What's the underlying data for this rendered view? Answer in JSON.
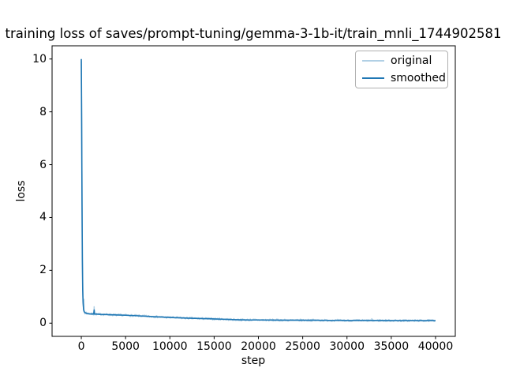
{
  "chart_data": {
    "type": "line",
    "title": "training loss of saves/prompt-tuning/gemma-3-1b-it/train_mnli_1744902581",
    "xlabel": "step",
    "ylabel": "loss",
    "xlim": [
      -3300,
      42230
    ],
    "ylim": [
      -0.5,
      10.5
    ],
    "xticks": [
      0,
      5000,
      10000,
      15000,
      20000,
      25000,
      30000,
      35000,
      40000
    ],
    "yticks": [
      0,
      2,
      4,
      6,
      8,
      10
    ],
    "grid": false,
    "frame_color": "#000000",
    "legend": {
      "position": "upper right",
      "entries": [
        {
          "label": "original",
          "color": "rgba(31,119,180,0.35)"
        },
        {
          "label": "smoothed",
          "color": "#1f77b4"
        }
      ]
    },
    "series": [
      {
        "name": "original",
        "color": "rgba(31,119,180,0.35)",
        "line_width": 1.5,
        "sample_interval": 60,
        "noise_amplitude": 0.04,
        "noise_amplitude_early": 0.09,
        "noise_early_cutoff": 600,
        "noise_seed": 7,
        "keypoints": {
          "x": [
            0,
            40,
            80,
            120,
            160,
            200,
            260,
            320,
            400,
            600,
            1000,
            2000,
            3000,
            4000,
            5000,
            6000,
            8000,
            10000,
            12000,
            14000,
            16000,
            18000,
            20000,
            22000,
            24000,
            26000,
            28000,
            30000,
            32000,
            34000,
            36000,
            38000,
            40000
          ],
          "y": [
            10.0,
            7.6,
            4.6,
            2.4,
            1.25,
            0.78,
            0.52,
            0.44,
            0.4,
            0.37,
            0.35,
            0.335,
            0.325,
            0.31,
            0.3,
            0.285,
            0.25,
            0.215,
            0.19,
            0.17,
            0.15,
            0.125,
            0.12,
            0.115,
            0.11,
            0.11,
            0.105,
            0.1,
            0.1,
            0.1,
            0.095,
            0.095,
            0.095
          ]
        },
        "spikes": [
          {
            "x": 300,
            "y": 0.9
          },
          {
            "x": 1450,
            "y": 0.62
          },
          {
            "x": 32800,
            "y": 0.17
          }
        ]
      },
      {
        "name": "smoothed",
        "color": "#1f77b4",
        "line_width": 1.6,
        "keypoints": {
          "x": [
            0,
            40,
            80,
            120,
            160,
            200,
            260,
            320,
            400,
            600,
            1000,
            1400,
            1450,
            1500,
            2000,
            3000,
            4000,
            5000,
            6000,
            8000,
            10000,
            12000,
            14000,
            15000,
            16000,
            17000,
            18000,
            19000,
            20000,
            22000,
            24000,
            26000,
            28000,
            30000,
            32000,
            34000,
            36000,
            38000,
            40000
          ],
          "y": [
            10.0,
            7.6,
            4.6,
            2.4,
            1.25,
            0.78,
            0.52,
            0.44,
            0.4,
            0.37,
            0.35,
            0.345,
            0.5,
            0.345,
            0.335,
            0.325,
            0.31,
            0.3,
            0.285,
            0.25,
            0.215,
            0.19,
            0.17,
            0.16,
            0.15,
            0.135,
            0.125,
            0.12,
            0.12,
            0.115,
            0.11,
            0.11,
            0.105,
            0.1,
            0.1,
            0.1,
            0.095,
            0.095,
            0.095
          ]
        }
      }
    ]
  }
}
